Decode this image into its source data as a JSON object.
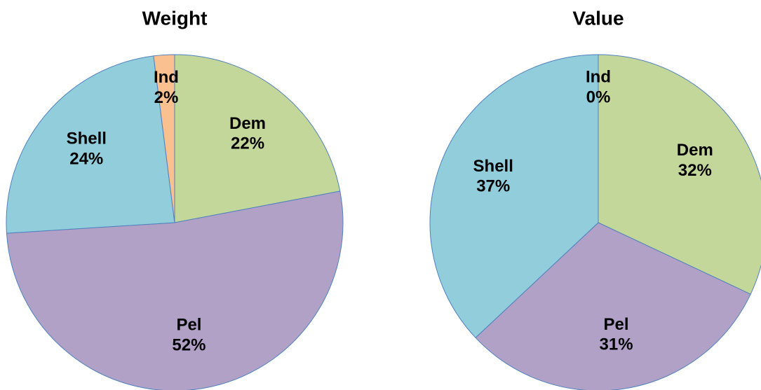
{
  "chart_data": [
    {
      "type": "pie",
      "title": "Weight",
      "categories": [
        "Dem",
        "Pel",
        "Shell",
        "Ind"
      ],
      "values": [
        22,
        52,
        24,
        2
      ],
      "value_labels": [
        "22%",
        "52%",
        "24%",
        "2%"
      ],
      "colors": [
        "#c4d79b",
        "#b2a1c7",
        "#92cddc",
        "#fac090"
      ]
    },
    {
      "type": "pie",
      "title": "Value",
      "categories": [
        "Dem",
        "Pel",
        "Shell",
        "Ind"
      ],
      "values": [
        32,
        31,
        37,
        0
      ],
      "value_labels": [
        "32%",
        "31%",
        "37%",
        "0%"
      ],
      "colors": [
        "#c4d79b",
        "#b2a1c7",
        "#92cddc",
        "#fac090"
      ]
    }
  ]
}
